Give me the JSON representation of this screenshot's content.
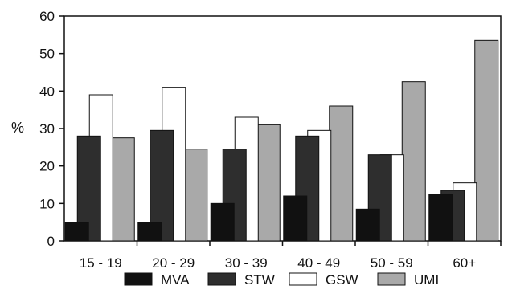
{
  "chart_data": {
    "type": "bar",
    "title": "",
    "xlabel": "",
    "ylabel": "%",
    "ylim": [
      0,
      60
    ],
    "yticks": [
      0,
      10,
      20,
      30,
      40,
      50,
      60
    ],
    "grid": false,
    "legend_position": "bottom",
    "categories": [
      "15 - 19",
      "20 - 29",
      "30 - 39",
      "40 - 49",
      "50 - 59",
      "60+"
    ],
    "series": [
      {
        "name": "MVA",
        "color": "#111111",
        "values": [
          5,
          5,
          10,
          12,
          8.5,
          12.5
        ]
      },
      {
        "name": "STW",
        "color": "#2e2e2e",
        "values": [
          28,
          29.5,
          24.5,
          28,
          23,
          13.5
        ]
      },
      {
        "name": "GSW",
        "color": "#ffffff",
        "values": [
          39,
          41,
          33,
          29.5,
          23,
          15.5
        ]
      },
      {
        "name": "UMI",
        "color": "#a9a9a9",
        "values": [
          27.5,
          24.5,
          31,
          36,
          42.5,
          53.5
        ]
      }
    ]
  }
}
